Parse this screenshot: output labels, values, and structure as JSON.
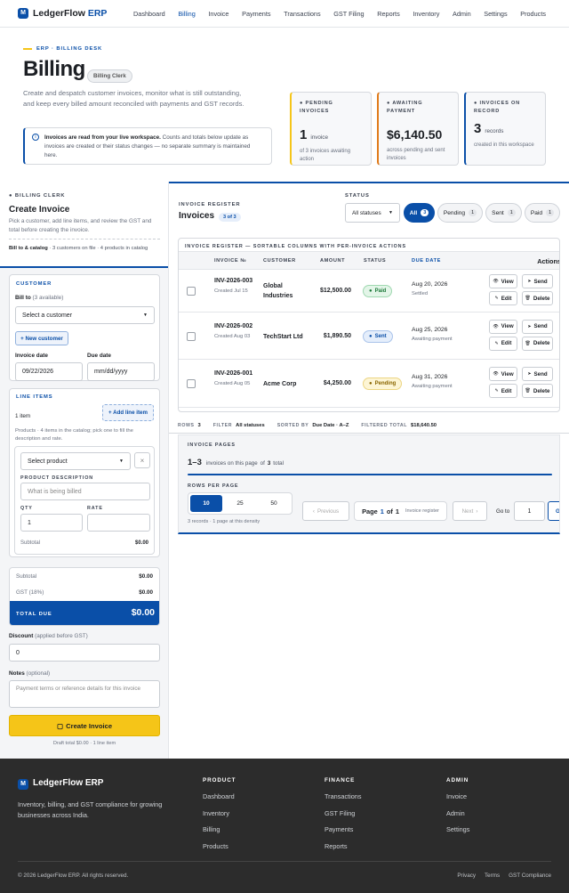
{
  "nav": {
    "brand": "LedgerFlow",
    "brand_suffix": "ERP",
    "links": [
      "Dashboard",
      "Billing",
      "Invoice",
      "Payments",
      "Transactions",
      "GST Filing",
      "Reports",
      "Inventory",
      "Admin",
      "Settings",
      "Products"
    ]
  },
  "hero": {
    "eyebrow": "ERP · BILLING DESK",
    "title": "Billing",
    "badge": "Billing Clerk",
    "description": "Create and despatch customer invoices, monitor what is still outstanding, and keep every billed amount reconciled with payments and GST records.",
    "notice_bold": "Invoices are read from your live workspace.",
    "notice_text": "Counts and totals below update as invoices are created or their status changes — no separate summary is maintained here."
  },
  "stats": [
    {
      "label": "PENDING INVOICES",
      "value": "1",
      "unit": "invoice",
      "note": "of 3 invoices awaiting action"
    },
    {
      "label": "AWAITING PAYMENT",
      "value": "$6,140.50",
      "note": "across pending and sent invoices"
    },
    {
      "label": "INVOICES ON RECORD",
      "value": "3",
      "unit": "records",
      "note": "created in this workspace"
    }
  ],
  "create": {
    "eyebrow": "BILLING CLERK",
    "title": "Create Invoice",
    "description": "Pick a customer, add line items, and review the GST and total before creating the invoice.",
    "meta_bold": "Bill to & catalog",
    "meta_text": " · 3 customers on file · 4 products in catalog",
    "customer": {
      "legend": "CUSTOMER",
      "bill_to": "Bill to",
      "available": "(3 available)",
      "select": "Select a customer",
      "new_button": "+ New customer",
      "invoice_date_label": "Invoice date",
      "invoice_date": "09/22/2026",
      "due_date_label": "Due date",
      "due_date": "mm/dd/yyyy"
    },
    "line_items": {
      "legend": "LINE ITEMS",
      "count": "1 item",
      "add_button": "+ Add line item",
      "hint": "Products · 4 items in the catalog; pick one to fill the description and rate.",
      "select": "Select product",
      "remove": "×",
      "desc_label": "PRODUCT DESCRIPTION",
      "desc_placeholder": "What is being billed",
      "qty_label": "QTY",
      "qty": "1",
      "rate_label": "RATE",
      "subtotal_label": "Subtotal",
      "subtotal": "$0.00"
    },
    "totals": {
      "subtotal_label": "Subtotal",
      "subtotal": "$0.00",
      "gst_label": "GST (18%)",
      "gst": "$0.00",
      "total_label": "TOTAL DUE",
      "total": "$0.00"
    },
    "discount_label": "Discount",
    "discount_hint": "(applied before GST)",
    "discount": "0",
    "notes_label": "Notes",
    "notes_hint": "(optional)",
    "notes_placeholder": "Payment terms or reference details for this invoice",
    "submit": "Create Invoice",
    "draft": "Draft total $0.00 · 1 line item"
  },
  "register": {
    "eyebrow": "INVOICE REGISTER",
    "title": "Invoices",
    "badge": "3 of 3",
    "status_label": "STATUS",
    "status_select": "All statuses",
    "filters": [
      {
        "name": "All",
        "count": "3"
      },
      {
        "name": "Pending",
        "count": "1"
      },
      {
        "name": "Sent",
        "count": "1"
      },
      {
        "name": "Paid",
        "count": "1"
      }
    ],
    "caption": "INVOICE REGISTER — SORTABLE COLUMNS WITH PER-INVOICE ACTIONS",
    "headers": [
      "INVOICE №",
      "CUSTOMER",
      "AMOUNT",
      "STATUS",
      "DUE DATE",
      "Actions"
    ],
    "actions": [
      "View",
      "Send",
      "Edit",
      "Delete"
    ],
    "rows": [
      {
        "id": "INV-2026-003",
        "created": "Created Jul 15",
        "customer": "Global Industries",
        "amount": "$12,500.00",
        "status": "Paid",
        "due": "Aug 20, 2026",
        "due_note": "Settled"
      },
      {
        "id": "INV-2026-002",
        "created": "Created Aug 03",
        "customer": "TechStart Ltd",
        "amount": "$1,890.50",
        "status": "Sent",
        "due": "Aug 25, 2026",
        "due_note": "Awaiting payment"
      },
      {
        "id": "INV-2026-001",
        "created": "Created Aug 05",
        "customer": "Acme Corp",
        "amount": "$4,250.00",
        "status": "Pending",
        "due": "Aug 31, 2026",
        "due_note": "Awaiting payment"
      }
    ],
    "summary": [
      {
        "label": "ROWS",
        "value": "3"
      },
      {
        "label": "FILTER",
        "value": "All statuses"
      },
      {
        "label": "SORTED BY",
        "value": "Due Date · A–Z"
      },
      {
        "label": "FILTERED TOTAL",
        "value": "$18,640.50"
      }
    ]
  },
  "pages": {
    "eyebrow": "INVOICE PAGES",
    "range": "1–3",
    "range_text": "invoices on this page",
    "of": "of",
    "total": "3",
    "total_text": "total",
    "rows_label": "ROWS PER PAGE",
    "sizes": [
      "10",
      "25",
      "50"
    ],
    "density": "3 records · 1 page at this density",
    "previous": "Previous",
    "page_word": "Page",
    "page": "1",
    "page_of": "of",
    "pages": "1",
    "page_context": "Invoice register",
    "next": "Next",
    "goto_label": "Go to",
    "goto_value": "1",
    "go": "Go"
  },
  "footer": {
    "brand": "LedgerFlow ERP",
    "description": "Inventory, billing, and GST compliance for growing businesses across India.",
    "columns": [
      {
        "title": "PRODUCT",
        "links": [
          "Dashboard",
          "Inventory",
          "Billing",
          "Products"
        ]
      },
      {
        "title": "FINANCE",
        "links": [
          "Transactions",
          "GST Filing",
          "Payments",
          "Reports"
        ]
      },
      {
        "title": "ADMIN",
        "links": [
          "Invoice",
          "Admin",
          "Settings"
        ]
      }
    ],
    "copyright": "© 2026 LedgerFlow ERP. All rights reserved.",
    "legal": [
      "Privacy",
      "Terms",
      "GST Compliance"
    ]
  }
}
